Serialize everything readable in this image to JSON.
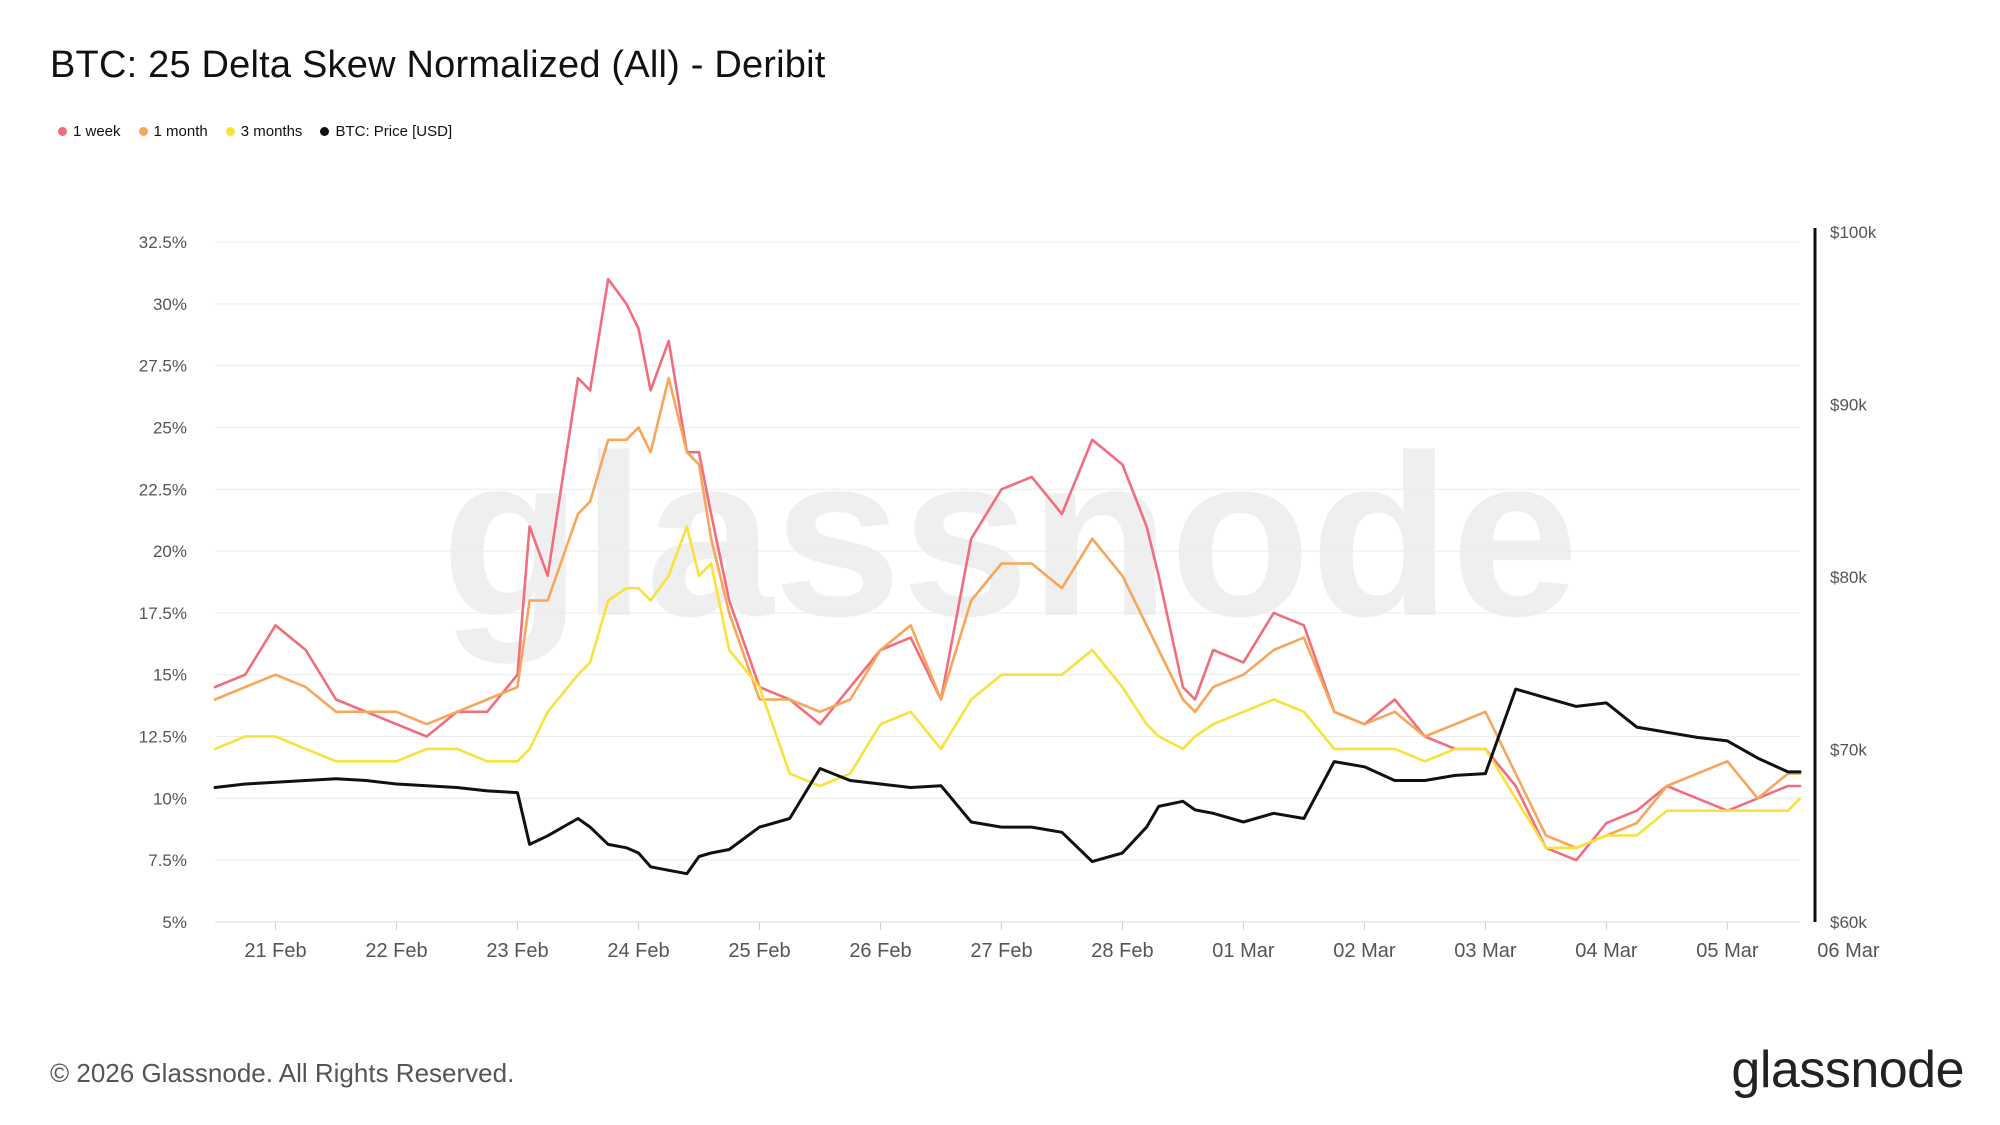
{
  "title": "BTC: 25 Delta Skew Normalized (All) - Deribit",
  "footer": "© 2026 Glassnode. All Rights Reserved.",
  "brand": "glassnode",
  "watermark": "glassnode",
  "legend": [
    {
      "name": "1 week",
      "color": "#f26d7d"
    },
    {
      "name": "1 month",
      "color": "#f7a65a"
    },
    {
      "name": "3 months",
      "color": "#f9e23c"
    },
    {
      "name": "BTC: Price [USD]",
      "color": "#111111"
    }
  ],
  "chart_data": {
    "type": "line",
    "title": "BTC: 25 Delta Skew Normalized (All) - Deribit",
    "x_ticks": [
      "21 Feb",
      "22 Feb",
      "23 Feb",
      "24 Feb",
      "25 Feb",
      "26 Feb",
      "27 Feb",
      "28 Feb",
      "01 Mar",
      "02 Mar",
      "03 Mar",
      "04 Mar",
      "05 Mar",
      "06 Mar"
    ],
    "x_range": [
      "20 Feb 12:00",
      "06 Mar 14:00"
    ],
    "y_left": {
      "ticks": [
        "32.5%",
        "30%",
        "27.5%",
        "25%",
        "22.5%",
        "20%",
        "17.5%",
        "15%",
        "12.5%",
        "10%",
        "7.5%",
        "5%"
      ],
      "range": [
        5,
        32.5
      ],
      "unit": "%"
    },
    "y_right": {
      "ticks": [
        "$100k",
        "$90k",
        "$80k",
        "$70k",
        "$60k"
      ],
      "values": [
        100000,
        90000,
        80000,
        70000,
        60000
      ],
      "range": [
        60000,
        100000
      ]
    },
    "grid": true,
    "legend_position": "top-left",
    "series": [
      {
        "name": "1 week",
        "axis": "left",
        "color": "#f26d7d",
        "x": [
          20.5,
          20.75,
          21.0,
          21.25,
          21.5,
          21.75,
          22.0,
          22.25,
          22.5,
          22.75,
          23.0,
          23.1,
          23.25,
          23.5,
          23.6,
          23.75,
          23.9,
          24.0,
          24.1,
          24.25,
          24.4,
          24.5,
          24.6,
          24.75,
          25.0,
          25.25,
          25.5,
          25.75,
          26.0,
          26.25,
          26.5,
          26.75,
          27.0,
          27.25,
          27.5,
          27.75,
          28.0,
          28.2,
          28.3,
          28.5,
          28.6,
          28.75,
          29.0,
          29.25,
          29.5,
          29.75,
          30.0,
          30.25,
          30.5,
          30.75,
          31.0,
          31.25,
          31.5,
          31.75,
          32.0,
          32.25,
          32.5,
          32.75,
          33.0,
          33.25,
          33.5,
          33.6
        ],
        "values": [
          14.5,
          15.0,
          17.0,
          16.0,
          14.0,
          13.5,
          13.0,
          12.5,
          13.5,
          13.5,
          15.0,
          21.0,
          19.0,
          27.0,
          26.5,
          31.0,
          30.0,
          29.0,
          26.5,
          28.5,
          24.0,
          24.0,
          21.5,
          18.0,
          14.5,
          14.0,
          13.0,
          14.5,
          16.0,
          16.5,
          14.0,
          20.5,
          22.5,
          23.0,
          21.5,
          24.5,
          23.5,
          21.0,
          19.0,
          14.5,
          14.0,
          16.0,
          15.5,
          17.5,
          17.0,
          13.5,
          13.0,
          14.0,
          12.5,
          12.0,
          12.0,
          10.5,
          8.0,
          7.5,
          9.0,
          9.5,
          10.5,
          10.0,
          9.5,
          10.0,
          10.5,
          10.5
        ]
      },
      {
        "name": "1 month",
        "axis": "left",
        "color": "#f7a65a",
        "x": [
          20.5,
          20.75,
          21.0,
          21.25,
          21.5,
          21.75,
          22.0,
          22.25,
          22.5,
          22.75,
          23.0,
          23.1,
          23.25,
          23.5,
          23.6,
          23.75,
          23.9,
          24.0,
          24.1,
          24.25,
          24.4,
          24.5,
          24.6,
          24.75,
          25.0,
          25.25,
          25.5,
          25.75,
          26.0,
          26.25,
          26.5,
          26.75,
          27.0,
          27.25,
          27.5,
          27.75,
          28.0,
          28.2,
          28.3,
          28.5,
          28.6,
          28.75,
          29.0,
          29.25,
          29.5,
          29.75,
          30.0,
          30.25,
          30.5,
          30.75,
          31.0,
          31.25,
          31.5,
          31.75,
          32.0,
          32.25,
          32.5,
          32.75,
          33.0,
          33.25,
          33.5,
          33.6
        ],
        "values": [
          14.0,
          14.5,
          15.0,
          14.5,
          13.5,
          13.5,
          13.5,
          13.0,
          13.5,
          14.0,
          14.5,
          18.0,
          18.0,
          21.5,
          22.0,
          24.5,
          24.5,
          25.0,
          24.0,
          27.0,
          24.0,
          23.5,
          20.5,
          17.5,
          14.0,
          14.0,
          13.5,
          14.0,
          16.0,
          17.0,
          14.0,
          18.0,
          19.5,
          19.5,
          18.5,
          20.5,
          19.0,
          17.0,
          16.0,
          14.0,
          13.5,
          14.5,
          15.0,
          16.0,
          16.5,
          13.5,
          13.0,
          13.5,
          12.5,
          13.0,
          13.5,
          11.0,
          8.5,
          8.0,
          8.5,
          9.0,
          10.5,
          11.0,
          11.5,
          10.0,
          11.0,
          11.0
        ]
      },
      {
        "name": "3 months",
        "axis": "left",
        "color": "#f9e23c",
        "x": [
          20.5,
          20.75,
          21.0,
          21.25,
          21.5,
          21.75,
          22.0,
          22.25,
          22.5,
          22.75,
          23.0,
          23.1,
          23.25,
          23.5,
          23.6,
          23.75,
          23.9,
          24.0,
          24.1,
          24.25,
          24.4,
          24.5,
          24.6,
          24.75,
          25.0,
          25.25,
          25.5,
          25.75,
          26.0,
          26.25,
          26.5,
          26.75,
          27.0,
          27.25,
          27.5,
          27.75,
          28.0,
          28.2,
          28.3,
          28.5,
          28.6,
          28.75,
          29.0,
          29.25,
          29.5,
          29.75,
          30.0,
          30.25,
          30.5,
          30.75,
          31.0,
          31.25,
          31.5,
          31.75,
          32.0,
          32.25,
          32.5,
          32.75,
          33.0,
          33.25,
          33.5,
          33.6
        ],
        "values": [
          12.0,
          12.5,
          12.5,
          12.0,
          11.5,
          11.5,
          11.5,
          12.0,
          12.0,
          11.5,
          11.5,
          12.0,
          13.5,
          15.0,
          15.5,
          18.0,
          18.5,
          18.5,
          18.0,
          19.0,
          21.0,
          19.0,
          19.5,
          16.0,
          14.5,
          11.0,
          10.5,
          11.0,
          13.0,
          13.5,
          12.0,
          14.0,
          15.0,
          15.0,
          15.0,
          16.0,
          14.5,
          13.0,
          12.5,
          12.0,
          12.5,
          13.0,
          13.5,
          14.0,
          13.5,
          12.0,
          12.0,
          12.0,
          11.5,
          12.0,
          12.0,
          10.0,
          8.0,
          8.0,
          8.5,
          8.5,
          9.5,
          9.5,
          9.5,
          9.5,
          9.5,
          10.0
        ]
      },
      {
        "name": "BTC: Price [USD]",
        "axis": "right",
        "color": "#111111",
        "x": [
          20.5,
          20.75,
          21.0,
          21.25,
          21.5,
          21.75,
          22.0,
          22.25,
          22.5,
          22.75,
          23.0,
          23.1,
          23.25,
          23.5,
          23.6,
          23.75,
          23.9,
          24.0,
          24.1,
          24.25,
          24.4,
          24.5,
          24.6,
          24.75,
          25.0,
          25.25,
          25.5,
          25.75,
          26.0,
          26.25,
          26.5,
          26.75,
          27.0,
          27.25,
          27.5,
          27.75,
          28.0,
          28.2,
          28.3,
          28.5,
          28.6,
          28.75,
          29.0,
          29.25,
          29.5,
          29.75,
          30.0,
          30.25,
          30.5,
          30.75,
          31.0,
          31.25,
          31.5,
          31.75,
          32.0,
          32.25,
          32.5,
          32.75,
          33.0,
          33.25,
          33.5,
          33.6
        ],
        "values": [
          67800,
          68000,
          68100,
          68200,
          68300,
          68200,
          68000,
          67900,
          67800,
          67600,
          67500,
          64500,
          65000,
          66000,
          65500,
          64500,
          64300,
          64000,
          63200,
          63000,
          62800,
          63800,
          64000,
          64200,
          65500,
          66000,
          68900,
          68200,
          68000,
          67800,
          67900,
          65800,
          65500,
          65500,
          65200,
          63500,
          64000,
          65500,
          66700,
          67000,
          66500,
          66300,
          65800,
          66300,
          66000,
          69300,
          69000,
          68200,
          68200,
          68500,
          68600,
          73500,
          73000,
          72500,
          72700,
          71300,
          71000,
          70700,
          70500,
          69500,
          68700,
          68700
        ]
      }
    ]
  }
}
